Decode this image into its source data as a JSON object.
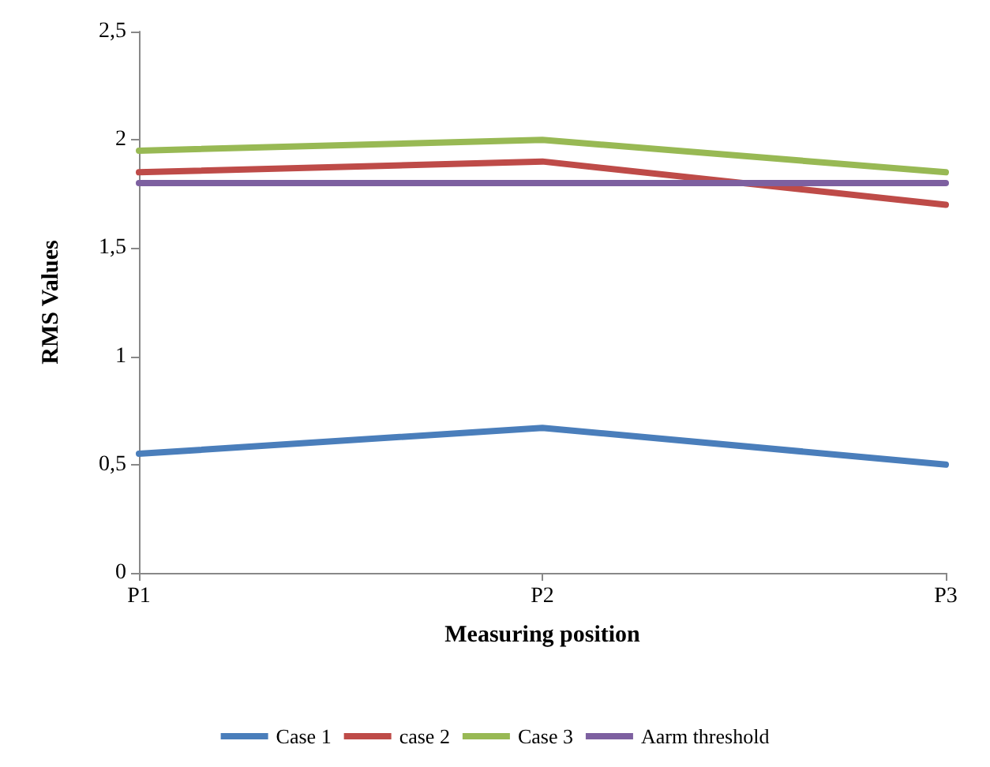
{
  "chart_data": {
    "type": "line",
    "xlabel": "Measuring position",
    "ylabel": "RMS Values",
    "categories": [
      "P1",
      "P2",
      "P3"
    ],
    "series": [
      {
        "name": "Case 1",
        "color": "#4a7ebb",
        "values": [
          0.55,
          0.67,
          0.5
        ]
      },
      {
        "name": "case 2",
        "color": "#be4b48",
        "values": [
          1.85,
          1.9,
          1.7
        ]
      },
      {
        "name": "Case 3",
        "color": "#98b954",
        "values": [
          1.95,
          2.0,
          1.85
        ]
      },
      {
        "name": "Aarm threshold",
        "color": "#7d60a0",
        "values": [
          1.8,
          1.8,
          1.8
        ]
      }
    ],
    "ylim": [
      0,
      2.5
    ],
    "yticks": [
      0,
      {
        "value": 0.5,
        "label": "0,5"
      },
      1,
      {
        "value": 1.5,
        "label": "1,5"
      },
      2,
      {
        "value": 2.5,
        "label": "2,5"
      }
    ],
    "grid": false,
    "legend": "bottom",
    "marker": "none",
    "line_style": "solid"
  }
}
